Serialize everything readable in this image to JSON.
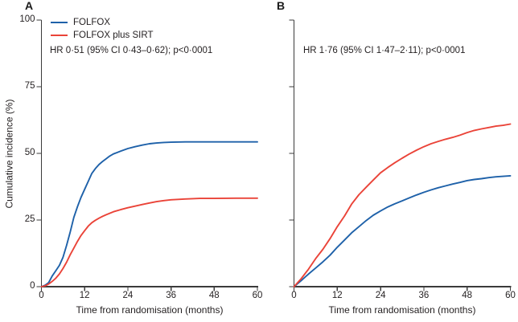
{
  "figure": {
    "background": "#ffffff",
    "text_color": "#231f20",
    "axis_color": "#3b3b3b"
  },
  "chart_data": [
    {
      "type": "line",
      "panel_label": "A",
      "annotation": "HR 0·51 (95% CI 0·43–0·62); p<0·0001",
      "xlabel": "Time from randomisation (months)",
      "ylabel": "Cumulative incidence (%)",
      "xlim": [
        0,
        60
      ],
      "ylim": [
        0,
        100
      ],
      "x_ticks": [
        0,
        12,
        24,
        36,
        48,
        60
      ],
      "y_ticks": [
        0,
        25,
        50,
        75,
        100
      ],
      "show_y_tick_labels": true,
      "grid": false,
      "legend_position": "top-left",
      "series": [
        {
          "name": "FOLFOX",
          "color": "#1e61a9",
          "x": [
            0,
            1,
            2,
            3,
            4,
            5,
            6,
            7,
            8,
            9,
            10,
            11,
            12,
            13,
            14,
            15,
            16,
            17,
            18,
            19,
            20,
            21,
            22,
            24,
            26,
            28,
            30,
            32,
            34,
            36,
            40,
            44,
            48,
            54,
            60
          ],
          "y": [
            0,
            0.5,
            1.5,
            4,
            6,
            8,
            11,
            15.5,
            20.5,
            26,
            30,
            33.5,
            36.5,
            39.5,
            42.5,
            44.3,
            45.8,
            47,
            48,
            49,
            49.8,
            50.3,
            50.8,
            51.8,
            52.5,
            53.1,
            53.6,
            53.9,
            54.1,
            54.2,
            54.3,
            54.3,
            54.3,
            54.3,
            54.3
          ]
        },
        {
          "name": "FOLFOX plus SIRT",
          "color": "#ea4338",
          "x": [
            0,
            1,
            2,
            3,
            4,
            5,
            6,
            7,
            8,
            9,
            10,
            11,
            12,
            13,
            14,
            15,
            16,
            17,
            18,
            20,
            22,
            24,
            26,
            28,
            30,
            32,
            34,
            36,
            40,
            44,
            48,
            54,
            60
          ],
          "y": [
            0,
            0.3,
            1,
            2,
            3.2,
            4.8,
            6.8,
            9.2,
            12,
            14.5,
            17,
            19.2,
            21,
            22.7,
            24,
            24.9,
            25.7,
            26.4,
            27,
            28.1,
            28.9,
            29.6,
            30.2,
            30.8,
            31.4,
            31.9,
            32.3,
            32.6,
            32.9,
            33.1,
            33.1,
            33.2,
            33.2
          ]
        }
      ]
    },
    {
      "type": "line",
      "panel_label": "B",
      "annotation": "HR 1·76 (95% CI 1·47–2·11); p<0·0001",
      "xlabel": "Time from randomisation (months)",
      "ylabel": "",
      "xlim": [
        0,
        60
      ],
      "ylim": [
        0,
        100
      ],
      "x_ticks": [
        0,
        12,
        24,
        36,
        48,
        60
      ],
      "y_ticks": [
        0,
        25,
        50,
        75,
        100
      ],
      "show_y_tick_labels": false,
      "grid": false,
      "series": [
        {
          "name": "FOLFOX",
          "color": "#1e61a9",
          "x": [
            0,
            2,
            4,
            6,
            8,
            10,
            12,
            14,
            16,
            18,
            20,
            22,
            24,
            26,
            28,
            30,
            32,
            34,
            36,
            38,
            40,
            42,
            44,
            46,
            48,
            50,
            52,
            54,
            56,
            58,
            60
          ],
          "y": [
            0,
            2.3,
            4.7,
            7,
            9.3,
            11.8,
            14.8,
            17.5,
            20.2,
            22.5,
            24.8,
            26.8,
            28.4,
            29.9,
            31.1,
            32.2,
            33.3,
            34.4,
            35.4,
            36.3,
            37.1,
            37.8,
            38.5,
            39.1,
            39.8,
            40.2,
            40.5,
            40.9,
            41.2,
            41.4,
            41.6
          ]
        },
        {
          "name": "FOLFOX plus SIRT",
          "color": "#ea4338",
          "x": [
            0,
            2,
            4,
            6,
            8,
            10,
            12,
            14,
            16,
            18,
            20,
            22,
            24,
            26,
            28,
            30,
            32,
            34,
            36,
            38,
            40,
            42,
            44,
            46,
            48,
            50,
            52,
            54,
            56,
            58,
            60
          ],
          "y": [
            0,
            3,
            6.5,
            10.5,
            14,
            18,
            22.5,
            26.5,
            31,
            34.5,
            37.3,
            40,
            42.7,
            44.7,
            46.5,
            48.2,
            49.8,
            51.2,
            52.5,
            53.6,
            54.5,
            55.3,
            56,
            56.8,
            57.8,
            58.6,
            59.2,
            59.7,
            60.2,
            60.5,
            61
          ]
        }
      ]
    }
  ]
}
